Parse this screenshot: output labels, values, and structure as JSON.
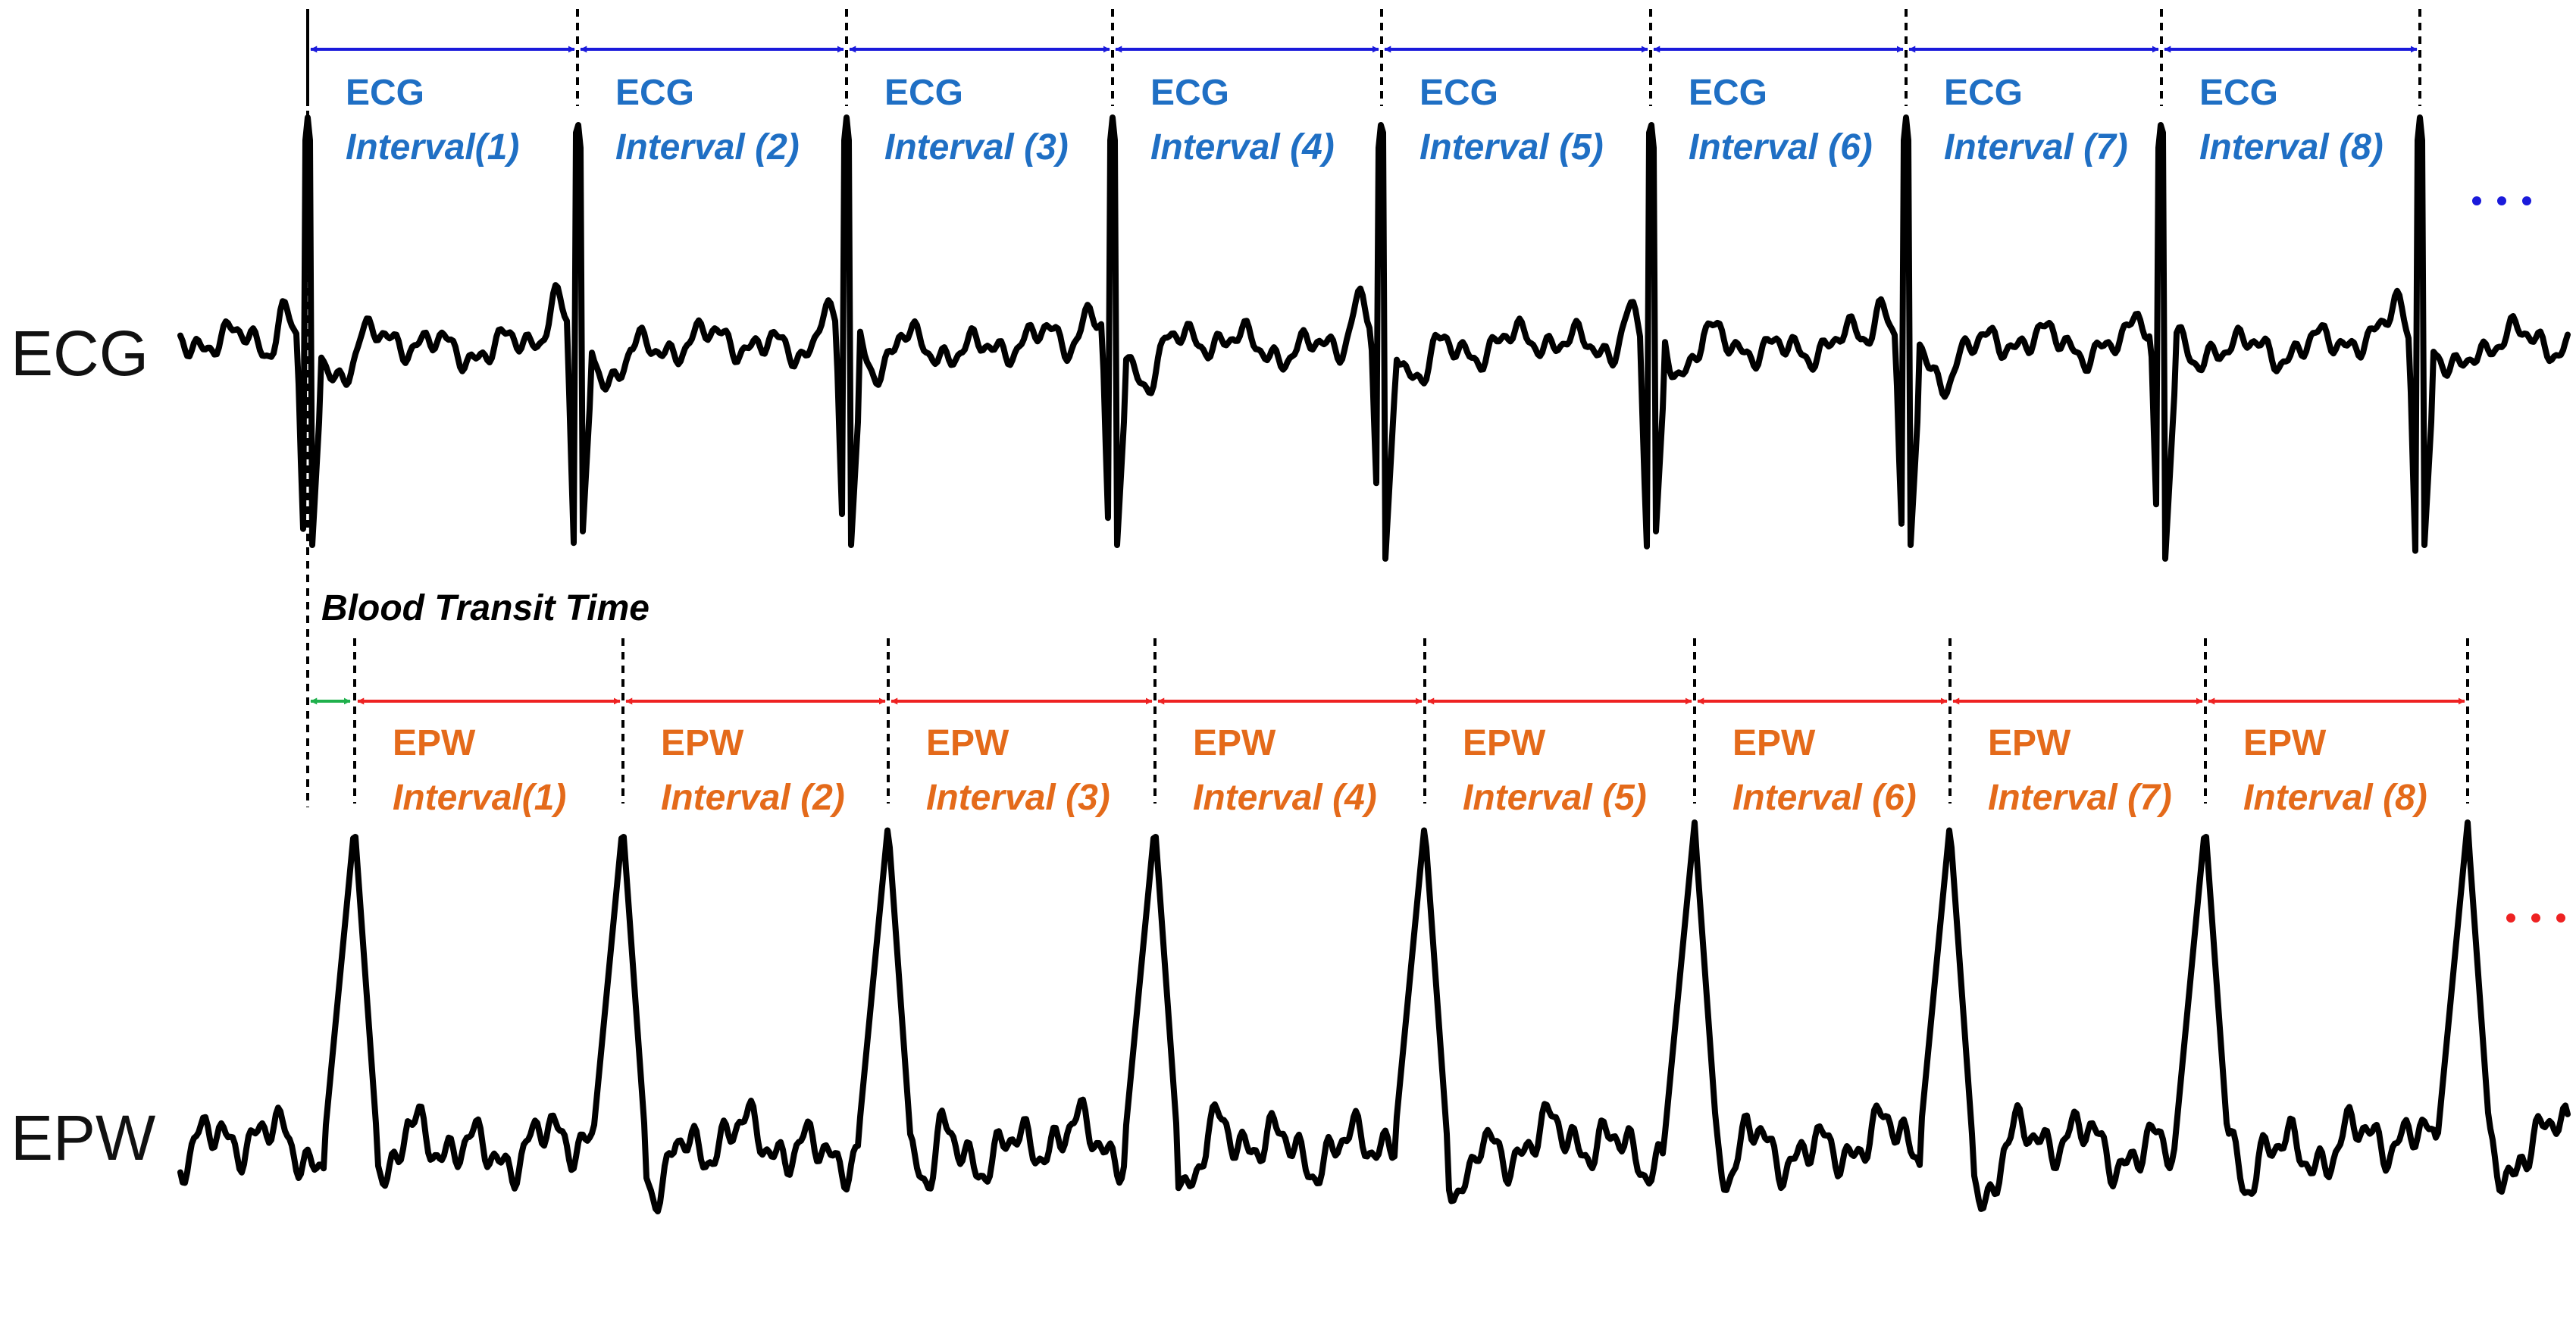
{
  "signals": {
    "ecg": {
      "label": "ECG"
    },
    "epw": {
      "label": "EPW"
    }
  },
  "ecg_intervals": [
    {
      "line1": "ECG",
      "line2": "Interval(1)"
    },
    {
      "line1": "ECG",
      "line2": "Interval (2)"
    },
    {
      "line1": "ECG",
      "line2": "Interval (3)"
    },
    {
      "line1": "ECG",
      "line2": "Interval (4)"
    },
    {
      "line1": "ECG",
      "line2": "Interval (5)"
    },
    {
      "line1": "ECG",
      "line2": "Interval (6)"
    },
    {
      "line1": "ECG",
      "line2": "Interval (7)"
    },
    {
      "line1": "ECG",
      "line2": "Interval (8)"
    }
  ],
  "epw_intervals": [
    {
      "line1": "EPW",
      "line2": "Interval(1)"
    },
    {
      "line1": "EPW",
      "line2": "Interval (2)"
    },
    {
      "line1": "EPW",
      "line2": "Interval (3)"
    },
    {
      "line1": "EPW",
      "line2": "Interval (4)"
    },
    {
      "line1": "EPW",
      "line2": "Interval (5)"
    },
    {
      "line1": "EPW",
      "line2": "Interval (6)"
    },
    {
      "line1": "EPW",
      "line2": "Interval (7)"
    },
    {
      "line1": "EPW",
      "line2": "Interval (8)"
    }
  ],
  "blood_transit_time": {
    "label": "Blood Transit Time"
  },
  "colors": {
    "ecg_arrow": "#1a1adb",
    "ecg_text": "#1f6fc4",
    "epw_arrow": "#ee2222",
    "epw_text": "#e46a1a",
    "btt": "#1fb04c",
    "waveform": "#000000"
  }
}
